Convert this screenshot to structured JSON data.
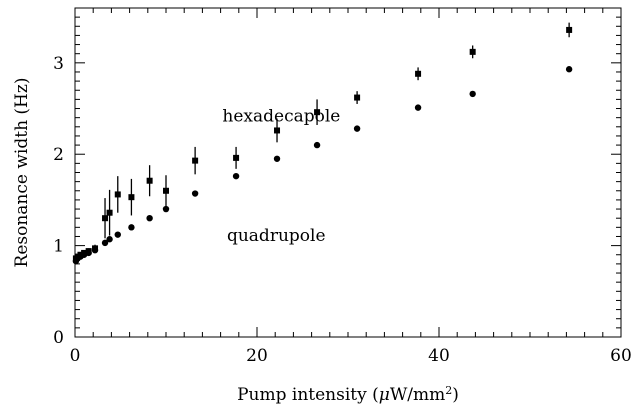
{
  "chart_data": {
    "type": "scatter",
    "xlabel": "Pump intensity (μW/mm²)",
    "xlabel_parts": {
      "pre": "Pump intensity (",
      "mu": "μ",
      "mid": "W/mm",
      "sup": "2",
      "post": ")"
    },
    "ylabel": "Resonance width (Hz)",
    "xlim": [
      0,
      60
    ],
    "ylim": [
      0,
      3.6
    ],
    "xticks": [
      0,
      20,
      40,
      60
    ],
    "yticks": [
      0,
      1,
      2,
      3
    ],
    "xtick_labels": [
      "0",
      "20",
      "40",
      "60"
    ],
    "ytick_labels": [
      "0",
      "1",
      "2",
      "3"
    ],
    "grid": false,
    "annotations": [
      {
        "text": "hexadecapole",
        "x": 16.2,
        "y": 2.36,
        "series": "hexadecapole"
      },
      {
        "text": "quadrupole",
        "x": 16.7,
        "y": 1.05,
        "series": "quadrupole"
      }
    ],
    "series": [
      {
        "name": "hexadecapole",
        "marker": "square",
        "points": [
          {
            "x": 0.1,
            "y": 0.86,
            "err": 0.02
          },
          {
            "x": 0.3,
            "y": 0.88,
            "err": 0.02
          },
          {
            "x": 0.6,
            "y": 0.9,
            "err": 0.03
          },
          {
            "x": 1.0,
            "y": 0.92,
            "err": 0.03
          },
          {
            "x": 1.5,
            "y": 0.94,
            "err": 0.03
          },
          {
            "x": 2.2,
            "y": 0.97,
            "err": 0.04
          },
          {
            "x": 3.3,
            "y": 1.3,
            "err": 0.22
          },
          {
            "x": 3.8,
            "y": 1.36,
            "err": 0.25
          },
          {
            "x": 4.7,
            "y": 1.56,
            "err": 0.2
          },
          {
            "x": 6.2,
            "y": 1.53,
            "err": 0.2
          },
          {
            "x": 8.2,
            "y": 1.71,
            "err": 0.17
          },
          {
            "x": 10.0,
            "y": 1.6,
            "err": 0.17
          },
          {
            "x": 13.2,
            "y": 1.93,
            "err": 0.15
          },
          {
            "x": 17.7,
            "y": 1.96,
            "err": 0.12
          },
          {
            "x": 22.2,
            "y": 2.26,
            "err": 0.13
          },
          {
            "x": 26.6,
            "y": 2.46,
            "err": 0.14
          },
          {
            "x": 31.0,
            "y": 2.62,
            "err": 0.07
          },
          {
            "x": 37.7,
            "y": 2.88,
            "err": 0.07
          },
          {
            "x": 43.7,
            "y": 3.12,
            "err": 0.07
          },
          {
            "x": 54.3,
            "y": 3.36,
            "err": 0.08
          }
        ]
      },
      {
        "name": "quadrupole",
        "marker": "circle",
        "points": [
          {
            "x": 0.1,
            "y": 0.83,
            "err": 0
          },
          {
            "x": 0.3,
            "y": 0.86,
            "err": 0
          },
          {
            "x": 0.6,
            "y": 0.88,
            "err": 0
          },
          {
            "x": 1.0,
            "y": 0.9,
            "err": 0
          },
          {
            "x": 1.5,
            "y": 0.92,
            "err": 0
          },
          {
            "x": 2.2,
            "y": 0.95,
            "err": 0
          },
          {
            "x": 3.3,
            "y": 1.03,
            "err": 0
          },
          {
            "x": 3.8,
            "y": 1.07,
            "err": 0
          },
          {
            "x": 4.7,
            "y": 1.12,
            "err": 0
          },
          {
            "x": 6.2,
            "y": 1.2,
            "err": 0
          },
          {
            "x": 8.2,
            "y": 1.3,
            "err": 0
          },
          {
            "x": 10.0,
            "y": 1.4,
            "err": 0
          },
          {
            "x": 13.2,
            "y": 1.57,
            "err": 0
          },
          {
            "x": 17.7,
            "y": 1.76,
            "err": 0
          },
          {
            "x": 22.2,
            "y": 1.95,
            "err": 0
          },
          {
            "x": 26.6,
            "y": 2.1,
            "err": 0
          },
          {
            "x": 31.0,
            "y": 2.28,
            "err": 0
          },
          {
            "x": 37.7,
            "y": 2.51,
            "err": 0
          },
          {
            "x": 43.7,
            "y": 2.66,
            "err": 0
          },
          {
            "x": 54.3,
            "y": 2.93,
            "err": 0
          }
        ]
      }
    ]
  }
}
